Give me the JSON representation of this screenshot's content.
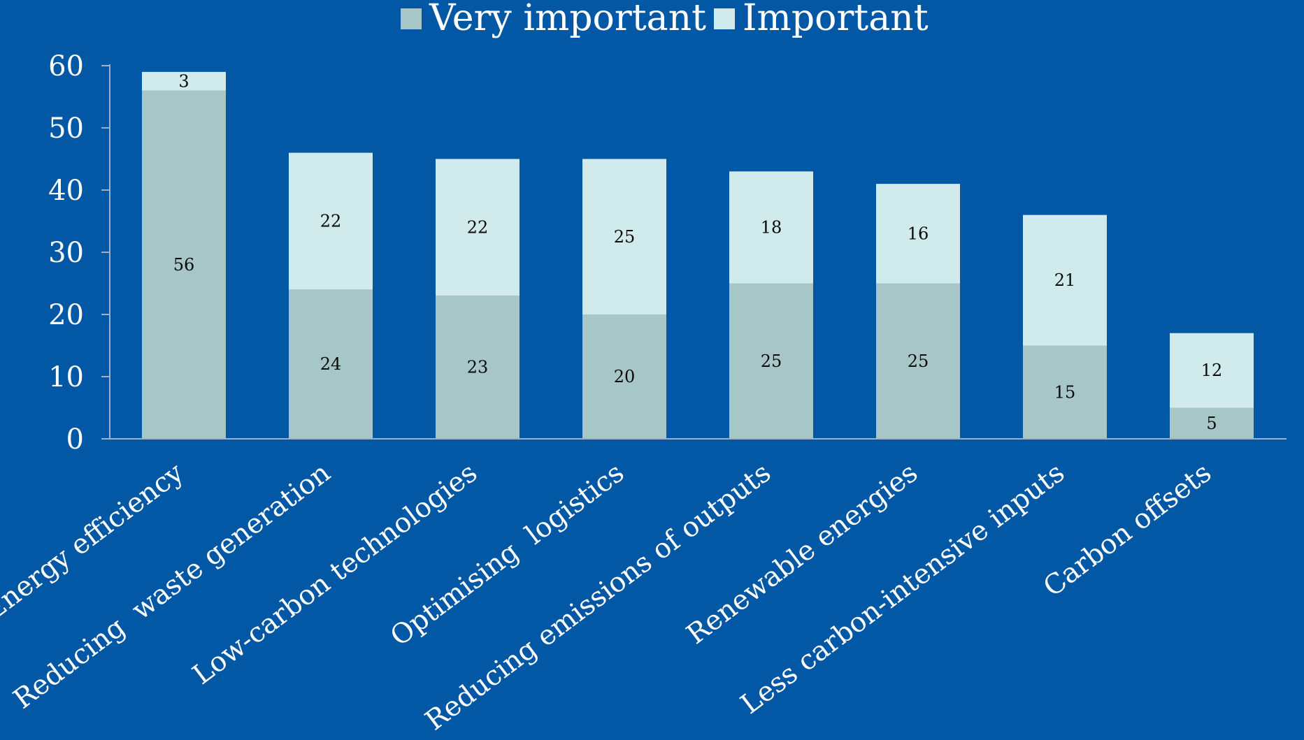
{
  "colors": {
    "background": "#0358a6",
    "very_important": "#a7c6c8",
    "important": "#d1eaec",
    "axis": "#9fb0c8",
    "text": "#ffffff",
    "data_label": "#0a0a0a"
  },
  "chart_data": {
    "type": "bar",
    "stacked": true,
    "categories": [
      "Energy efficiency",
      "Reducing  waste generation",
      "Low-carbon technologies",
      "Optimising  logistics",
      "Reducing emissions of outputs",
      "Renewable energies",
      "Less carbon-intensive inputs",
      "Carbon offsets"
    ],
    "series": [
      {
        "name": "Very important",
        "values": [
          56,
          24,
          23,
          20,
          25,
          25,
          15,
          5
        ]
      },
      {
        "name": "Important",
        "values": [
          3,
          22,
          22,
          25,
          18,
          16,
          21,
          12
        ]
      }
    ],
    "ylim": [
      0,
      60
    ],
    "yticks": [
      0,
      10,
      20,
      30,
      40,
      50,
      60
    ],
    "legend_position": "top-center",
    "grid": false,
    "data_labels": true
  }
}
